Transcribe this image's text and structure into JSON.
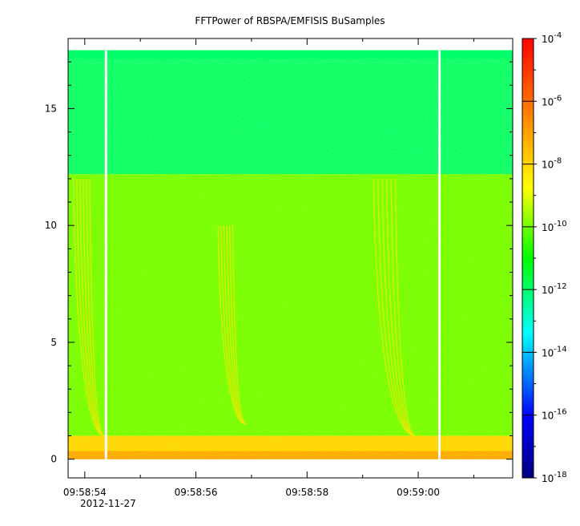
{
  "chart_data": {
    "type": "heatmap",
    "title": "FFTPower of RBSPA/EMFISIS  BuSamples",
    "xlabel": "",
    "ylabel": "",
    "x_axis": {
      "type": "time",
      "range": [
        "09:58:53.7",
        "09:59:01.7"
      ],
      "tick_labels": [
        "09:58:54",
        "09:58:56",
        "09:58:58",
        "09:59:00"
      ],
      "tick_values_s": [
        54,
        56,
        58,
        60
      ],
      "minor_tick_values_s": [
        55,
        57,
        59,
        61
      ],
      "date_label": "2012-11-27"
    },
    "y_axis": {
      "range": [
        -0.8,
        18.0
      ],
      "tick_values": [
        0,
        5,
        10,
        15
      ],
      "tick_labels": [
        "0",
        "5",
        "10",
        "15"
      ]
    },
    "colorbar": {
      "scale": "log",
      "range": [
        1e-18,
        0.0001
      ],
      "tick_values": [
        0.0001,
        1e-06,
        1e-08,
        1e-10,
        1e-12,
        1e-14,
        1e-16,
        1e-18
      ],
      "tick_bases": [
        "10",
        "10",
        "10",
        "10",
        "10",
        "10",
        "10",
        "10"
      ],
      "tick_exponents": [
        "-4",
        "-6",
        "-8",
        "-10",
        "-12",
        "-14",
        "-16",
        "-18"
      ],
      "colormap": [
        "#000080",
        "#0000ff",
        "#00ffff",
        "#00ff00",
        "#ffff00",
        "#ff8000",
        "#ff0000"
      ]
    },
    "data_gaps_s": [
      [
        54.36,
        54.4
      ],
      [
        60.36,
        60.4
      ]
    ],
    "bands": [
      {
        "y_range": [
          12.2,
          17.5
        ],
        "level": 1e-12
      },
      {
        "y_range": [
          1.0,
          12.2
        ],
        "level": 1e-10
      },
      {
        "y_range": [
          0.0,
          1.0
        ],
        "level": 1e-08
      }
    ],
    "features": [
      {
        "kind": "whistler_dispersion",
        "t_start_s": 53.8,
        "t_end_s": 54.35,
        "y_top": 12.0,
        "y_bottom": 1.0
      },
      {
        "kind": "whistler_dispersion",
        "t_start_s": 56.4,
        "t_end_s": 56.9,
        "y_top": 10.0,
        "y_bottom": 1.5
      },
      {
        "kind": "whistler_dispersion",
        "t_start_s": 59.2,
        "t_end_s": 59.95,
        "y_top": 12.0,
        "y_bottom": 1.0
      }
    ]
  }
}
